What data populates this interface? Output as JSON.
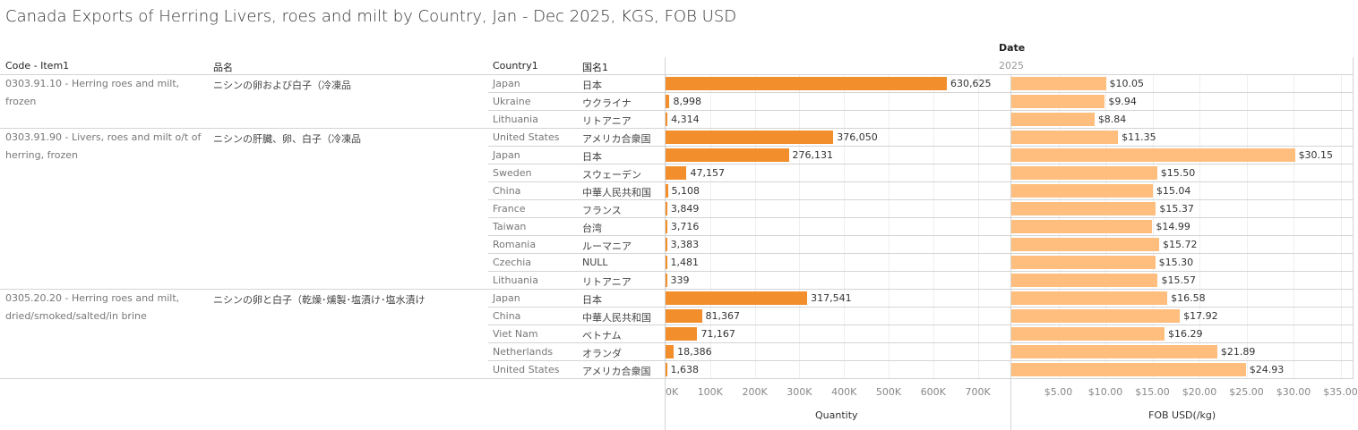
{
  "title": "Canada Exports of Herring Livers, roes and milt by Country, Jan - Dec 2025, KGS, FOB USD",
  "headers": {
    "code": "Code - Item1",
    "name_jp": "品名",
    "country": "Country1",
    "country_jp": "国名1",
    "date": "Date",
    "year": "2025"
  },
  "chart_data": {
    "type": "bar",
    "title": "Canada Exports of Herring Livers, roes and milt by Country, Jan - Dec 2025, KGS, FOB USD",
    "groups": [
      {
        "code": "0303.91.10 - Herring roes and milt, frozen",
        "name_jp": "ニシンの卵および白子（冷凍品",
        "rows": [
          {
            "country": "Japan",
            "country_jp": "日本",
            "quantity": 630625,
            "quantity_label": "630,625",
            "fob": 10.05,
            "fob_label": "$10.05"
          },
          {
            "country": "Ukraine",
            "country_jp": "ウクライナ",
            "quantity": 8998,
            "quantity_label": "8,998",
            "fob": 9.94,
            "fob_label": "$9.94"
          },
          {
            "country": "Lithuania",
            "country_jp": "リトアニア",
            "quantity": 4314,
            "quantity_label": "4,314",
            "fob": 8.84,
            "fob_label": "$8.84"
          }
        ]
      },
      {
        "code": "0303.91.90 - Livers, roes and milt o/t of herring, frozen",
        "name_jp": "ニシンの肝臓、卵、白子（冷凍品",
        "rows": [
          {
            "country": "United States",
            "country_jp": "アメリカ合衆国",
            "quantity": 376050,
            "quantity_label": "376,050",
            "fob": 11.35,
            "fob_label": "$11.35"
          },
          {
            "country": "Japan",
            "country_jp": "日本",
            "quantity": 276131,
            "quantity_label": "276,131",
            "fob": 30.15,
            "fob_label": "$30.15"
          },
          {
            "country": "Sweden",
            "country_jp": "スウェーデン",
            "quantity": 47157,
            "quantity_label": "47,157",
            "fob": 15.5,
            "fob_label": "$15.50"
          },
          {
            "country": "China",
            "country_jp": "中華人民共和国",
            "quantity": 5108,
            "quantity_label": "5,108",
            "fob": 15.04,
            "fob_label": "$15.04"
          },
          {
            "country": "France",
            "country_jp": "フランス",
            "quantity": 3849,
            "quantity_label": "3,849",
            "fob": 15.37,
            "fob_label": "$15.37"
          },
          {
            "country": "Taiwan",
            "country_jp": "台湾",
            "quantity": 3716,
            "quantity_label": "3,716",
            "fob": 14.99,
            "fob_label": "$14.99"
          },
          {
            "country": "Romania",
            "country_jp": "ルーマニア",
            "quantity": 3383,
            "quantity_label": "3,383",
            "fob": 15.72,
            "fob_label": "$15.72"
          },
          {
            "country": "Czechia",
            "country_jp": "NULL",
            "quantity": 1481,
            "quantity_label": "1,481",
            "fob": 15.3,
            "fob_label": "$15.30"
          },
          {
            "country": "Lithuania",
            "country_jp": "リトアニア",
            "quantity": 339,
            "quantity_label": "339",
            "fob": 15.57,
            "fob_label": "$15.57"
          }
        ]
      },
      {
        "code": "0305.20.20 - Herring roes and milt, dried/smoked/salted/in brine",
        "name_jp": "ニシンの卵と白子（乾燥･燻製･塩漬け･塩水漬け",
        "rows": [
          {
            "country": "Japan",
            "country_jp": "日本",
            "quantity": 317541,
            "quantity_label": "317,541",
            "fob": 16.58,
            "fob_label": "$16.58"
          },
          {
            "country": "China",
            "country_jp": "中華人民共和国",
            "quantity": 81367,
            "quantity_label": "81,367",
            "fob": 17.92,
            "fob_label": "$17.92"
          },
          {
            "country": "Viet Nam",
            "country_jp": "ベトナム",
            "quantity": 71167,
            "quantity_label": "71,167",
            "fob": 16.29,
            "fob_label": "$16.29"
          },
          {
            "country": "Netherlands",
            "country_jp": "オランダ",
            "quantity": 18386,
            "quantity_label": "18,386",
            "fob": 21.89,
            "fob_label": "$21.89"
          },
          {
            "country": "United States",
            "country_jp": "アメリカ合衆国",
            "quantity": 1638,
            "quantity_label": "1,638",
            "fob": 24.93,
            "fob_label": "$24.93"
          }
        ]
      }
    ],
    "quantity_axis": {
      "label": "Quantity",
      "range": [
        0,
        770000
      ],
      "ticks": [
        0,
        100000,
        200000,
        300000,
        400000,
        500000,
        600000,
        700000
      ],
      "tick_labels": [
        "0K",
        "100K",
        "200K",
        "300K",
        "400K",
        "500K",
        "600K",
        "700K"
      ]
    },
    "fob_axis": {
      "label": "FOB USD(/kg)",
      "range": [
        0,
        35.5
      ],
      "ticks": [
        5,
        10,
        15,
        20,
        25,
        30,
        35
      ],
      "tick_labels": [
        "$5.00",
        "$10.00",
        "$15.00",
        "$20.00",
        "$25.00",
        "$30.00",
        "$35.00"
      ]
    },
    "grid": true
  },
  "colors": {
    "quantity_bar": "#f28e2b",
    "fob_bar": "#ffbe7d"
  }
}
